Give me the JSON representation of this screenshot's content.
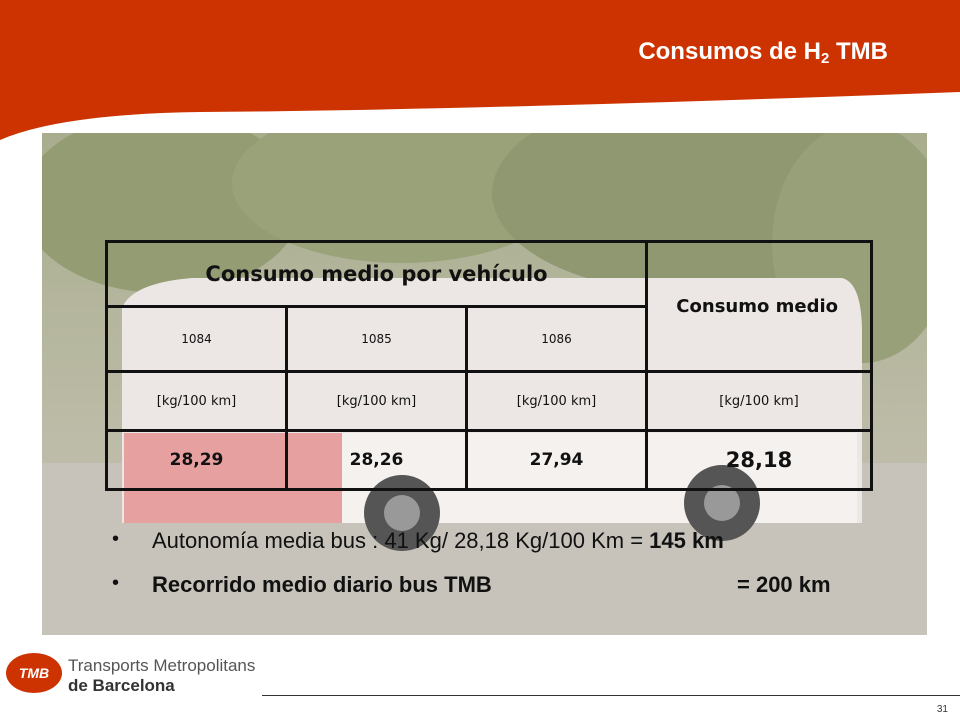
{
  "slide": {
    "title_prefix": "Consumos de H",
    "title_sub": "2",
    "title_suffix": " TMB",
    "colors": {
      "header_red": "#cc3300",
      "text": "#111111"
    }
  },
  "table": {
    "header_group": "Consumo medio por vehículo",
    "header_avg": "Consumo medio",
    "vehicles": [
      "1084",
      "1085",
      "1086"
    ],
    "units": [
      "[kg/100 km]",
      "[kg/100 km]",
      "[kg/100 km]",
      "[kg/100 km]"
    ],
    "values": [
      "28,29",
      "28,26",
      "27,94",
      "28,18"
    ]
  },
  "bullets": [
    {
      "text": "Autonomía media bus : 41 Kg/ 28,18 Kg/100 Km = ",
      "bold": "145 km"
    },
    {
      "text": "Recorrido medio diario bus  TMB",
      "right": "= 200 km"
    }
  ],
  "logo": {
    "mark": "TMB",
    "line1": "Transports Metropolitans",
    "line2": "de Barcelona"
  },
  "page_number": "31"
}
